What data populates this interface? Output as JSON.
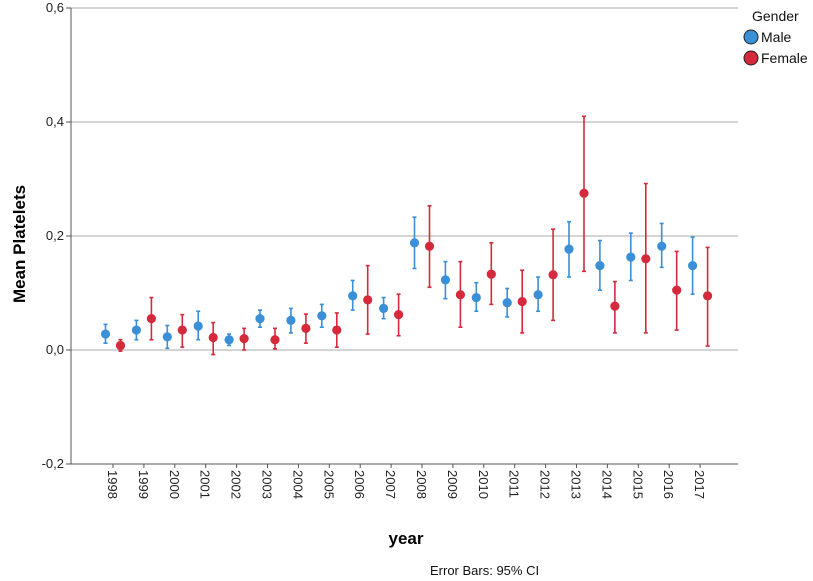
{
  "chart_data": {
    "type": "scatter",
    "subtype": "error-bar",
    "title": "",
    "xlabel": "year",
    "ylabel": "Mean Platelets",
    "ylim": [
      -0.2,
      0.6
    ],
    "yticks": [
      "-0,2",
      "0,0",
      "0,2",
      "0,4",
      "0,6"
    ],
    "ytick_values": [
      -0.2,
      0.0,
      0.2,
      0.4,
      0.6
    ],
    "gridlines": [
      0.0,
      0.2,
      0.4,
      0.6
    ],
    "categories": [
      "1998",
      "1999",
      "2000",
      "2001",
      "2002",
      "2003",
      "2004",
      "2005",
      "2006",
      "2007",
      "2008",
      "2009",
      "2010",
      "2011",
      "2012",
      "2013",
      "2014",
      "2015",
      "2016",
      "2017"
    ],
    "legend": {
      "title": "Gender",
      "position": "top-right"
    },
    "series": [
      {
        "name": "Male",
        "color": "#3a8fd6",
        "values": [
          0.028,
          0.035,
          0.023,
          0.042,
          0.018,
          0.055,
          0.052,
          0.06,
          0.095,
          0.073,
          0.188,
          0.123,
          0.092,
          0.083,
          0.097,
          0.177,
          0.148,
          0.163,
          0.182,
          0.148
        ],
        "lower": [
          0.012,
          0.018,
          0.003,
          0.018,
          0.008,
          0.04,
          0.03,
          0.04,
          0.07,
          0.055,
          0.143,
          0.09,
          0.068,
          0.058,
          0.068,
          0.128,
          0.105,
          0.122,
          0.145,
          0.098
        ],
        "upper": [
          0.045,
          0.052,
          0.043,
          0.068,
          0.028,
          0.07,
          0.073,
          0.08,
          0.122,
          0.092,
          0.233,
          0.155,
          0.118,
          0.108,
          0.128,
          0.225,
          0.192,
          0.205,
          0.222,
          0.198
        ]
      },
      {
        "name": "Female",
        "color": "#d42a3c",
        "values": [
          0.008,
          0.055,
          0.035,
          0.022,
          0.02,
          0.018,
          0.038,
          0.035,
          0.088,
          0.062,
          0.182,
          0.097,
          0.133,
          0.085,
          0.132,
          0.275,
          0.077,
          0.16,
          0.105,
          0.095
        ],
        "lower": [
          -0.002,
          0.018,
          0.005,
          -0.008,
          0.0,
          0.002,
          0.012,
          0.005,
          0.028,
          0.025,
          0.11,
          0.04,
          0.08,
          0.03,
          0.052,
          0.138,
          0.03,
          0.03,
          0.035,
          0.007
        ],
        "upper": [
          0.018,
          0.092,
          0.062,
          0.048,
          0.038,
          0.038,
          0.063,
          0.065,
          0.148,
          0.098,
          0.253,
          0.155,
          0.188,
          0.14,
          0.212,
          0.41,
          0.12,
          0.292,
          0.173,
          0.18
        ]
      }
    ],
    "footnote": "Error Bars: 95% CI"
  }
}
